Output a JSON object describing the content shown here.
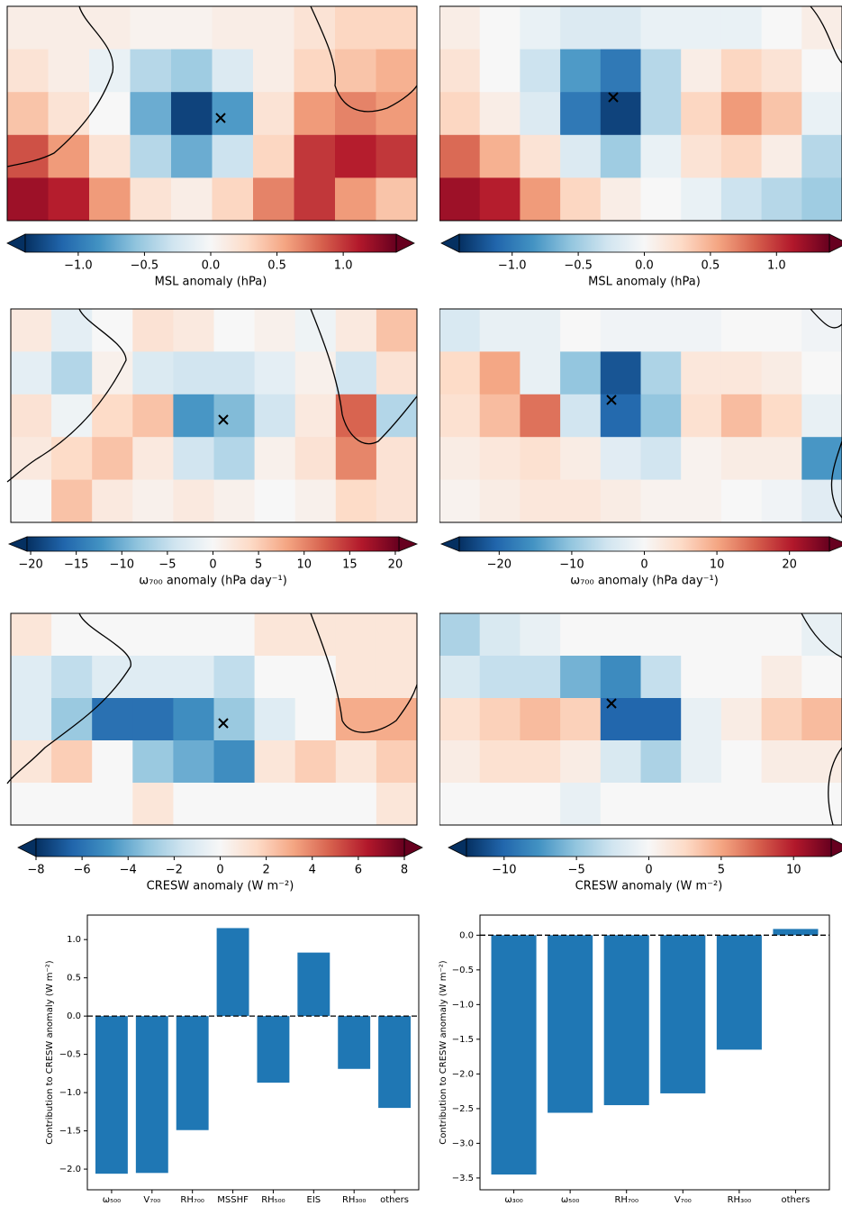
{
  "chart_data": [
    {
      "type": "heatmap",
      "colormap": "RdBu_r",
      "colorbar_label": "MSL anomaly (hPa)",
      "vlim": [
        -1.4,
        1.4
      ],
      "ticks": [
        {
          "value": -1.0,
          "label": "−1.0"
        },
        {
          "value": -0.5,
          "label": "−0.5"
        },
        {
          "value": 0.0,
          "label": "0.0"
        },
        {
          "value": 0.5,
          "label": "0.5"
        },
        {
          "value": 1.0,
          "label": "1.0"
        }
      ],
      "values": [
        [
          0.1,
          0.1,
          0.1,
          0.05,
          0.05,
          0.1,
          0.1,
          0.2,
          0.3,
          0.3
        ],
        [
          0.2,
          0.1,
          -0.1,
          -0.4,
          -0.5,
          -0.2,
          0.1,
          0.3,
          0.4,
          0.5
        ],
        [
          0.4,
          0.2,
          0,
          -0.7,
          -1.3,
          -0.8,
          0.2,
          0.6,
          0.7,
          0.6
        ],
        [
          0.9,
          0.6,
          0.2,
          -0.4,
          -0.7,
          -0.3,
          0.3,
          1.0,
          1.1,
          1.0
        ],
        [
          1.2,
          1.1,
          0.6,
          0.2,
          0.1,
          0.3,
          0.7,
          1.0,
          0.6,
          0.4
        ]
      ]
    },
    {
      "type": "heatmap",
      "colormap": "RdBu_r",
      "colorbar_label": "MSL anomaly (hPa)",
      "vlim": [
        -1.4,
        1.4
      ],
      "ticks": [
        {
          "value": -1.0,
          "label": "−1.0"
        },
        {
          "value": -0.5,
          "label": "−0.5"
        },
        {
          "value": 0.0,
          "label": "0.0"
        },
        {
          "value": 0.5,
          "label": "0.5"
        },
        {
          "value": 1.0,
          "label": "1.0"
        }
      ],
      "values": [
        [
          0.1,
          0,
          -0.1,
          -0.2,
          -0.2,
          -0.1,
          -0.1,
          -0.1,
          0,
          0.1
        ],
        [
          0.2,
          0,
          -0.3,
          -0.8,
          -1.0,
          -0.4,
          0.1,
          0.3,
          0.2,
          0
        ],
        [
          0.3,
          0.1,
          -0.2,
          -1.0,
          -1.3,
          -0.4,
          0.3,
          0.6,
          0.4,
          -0.1
        ],
        [
          0.8,
          0.5,
          0.2,
          -0.2,
          -0.5,
          -0.1,
          0.2,
          0.3,
          0.1,
          -0.4
        ],
        [
          1.2,
          1.1,
          0.6,
          0.3,
          0.1,
          0,
          -0.1,
          -0.3,
          -0.4,
          -0.5
        ]
      ]
    },
    {
      "type": "heatmap",
      "colormap": "RdBu_r",
      "colorbar_label": "ω₇₀₀ anomaly (hPa day⁻¹)",
      "vlim": [
        -20.4,
        20.4
      ],
      "ticks": [
        {
          "value": -20,
          "label": "−20"
        },
        {
          "value": -15,
          "label": "−15"
        },
        {
          "value": -10,
          "label": "−10"
        },
        {
          "value": -5,
          "label": "−5"
        },
        0,
        5,
        10,
        15,
        20
      ],
      "values": [
        [
          2,
          -2,
          0,
          3,
          2,
          0,
          1,
          -1,
          2,
          6
        ],
        [
          -2,
          -6,
          1,
          -3,
          -4,
          -4,
          -2,
          1,
          -4,
          3
        ],
        [
          3,
          -1,
          4,
          6,
          -12,
          -9,
          -4,
          2,
          12,
          -6
        ],
        [
          2,
          4,
          6,
          2,
          -4,
          -6,
          1,
          3,
          10,
          3
        ],
        [
          0,
          6,
          2,
          1,
          2,
          1,
          0,
          1,
          4,
          3
        ]
      ]
    },
    {
      "type": "heatmap",
      "colormap": "RdBu_r",
      "colorbar_label": "ω₇₀₀ anomaly (hPa day⁻¹)",
      "vlim": [
        -25.5,
        25.5
      ],
      "ticks": [
        {
          "value": -20,
          "label": "−20"
        },
        {
          "value": -10,
          "label": "−10"
        },
        0,
        10,
        20
      ],
      "values": [
        [
          -4,
          -2,
          -2,
          0,
          -1,
          -1,
          -1,
          0,
          0,
          -1
        ],
        [
          5,
          10,
          -2,
          -10,
          -22,
          -8,
          3,
          3,
          2,
          0
        ],
        [
          4,
          8,
          14,
          -5,
          -20,
          -10,
          4,
          8,
          5,
          -2
        ],
        [
          2,
          3,
          4,
          2,
          -3,
          -5,
          1,
          2,
          2,
          -15
        ],
        [
          1,
          2,
          3,
          3,
          2,
          1,
          1,
          0,
          -1,
          -3
        ]
      ]
    },
    {
      "type": "heatmap",
      "colormap": "RdBu_r",
      "colorbar_label": "CRESW anomaly (W m⁻²)",
      "vlim": [
        -8,
        8
      ],
      "ticks": [
        {
          "value": -8,
          "label": "−8"
        },
        {
          "value": -6,
          "label": "−6"
        },
        {
          "value": -4,
          "label": "−4"
        },
        {
          "value": -2,
          "label": "−2"
        },
        0,
        2,
        4,
        6,
        8
      ],
      "values": [
        [
          1,
          0,
          0,
          0,
          0,
          0,
          1,
          1,
          1,
          1
        ],
        [
          -1,
          -2,
          -1,
          -1,
          -1,
          -2,
          0,
          0,
          1,
          1
        ],
        [
          -1,
          -3,
          -6,
          -6,
          -5,
          -3,
          -1,
          0,
          3,
          3
        ],
        [
          1,
          2,
          0,
          -3,
          -4,
          -5,
          1,
          2,
          1,
          2
        ],
        [
          0,
          0,
          0,
          1,
          0,
          0,
          0,
          0,
          0,
          1
        ]
      ]
    },
    {
      "type": "heatmap",
      "colormap": "RdBu_r",
      "colorbar_label": "CRESW anomaly (W m⁻²)",
      "vlim": [
        -12.6,
        12.6
      ],
      "ticks": [
        {
          "value": -10,
          "label": "−10"
        },
        {
          "value": -5,
          "label": "−5"
        },
        0,
        5,
        10
      ],
      "values": [
        [
          -4,
          -2,
          -1,
          0,
          0,
          0,
          0,
          0,
          0,
          -1
        ],
        [
          -2,
          -3,
          -3,
          -6,
          -8,
          -3,
          0,
          0,
          1,
          0
        ],
        [
          2,
          3,
          4,
          3,
          -10,
          -10,
          -1,
          1,
          3,
          4
        ],
        [
          1,
          2,
          2,
          1,
          -2,
          -4,
          -1,
          0,
          1,
          1
        ],
        [
          0,
          0,
          0,
          -1,
          0,
          0,
          0,
          0,
          0,
          0
        ]
      ]
    },
    {
      "type": "bar",
      "color": "#1f77b4",
      "ylabel": "Contribution to CRESW anomaly (W m⁻²)",
      "categories": [
        "ω₅₀₀",
        "V₇₀₀",
        "RH₇₀₀",
        "MSSHF",
        "RH₅₀₀",
        "EIS",
        "RH₃₀₀",
        "others"
      ],
      "values": [
        -2.06,
        -2.05,
        -1.49,
        1.15,
        -0.87,
        0.83,
        -0.69,
        -1.2
      ],
      "ylim": [
        -2.27,
        1.32
      ],
      "yticks": [
        {
          "value": -2.0,
          "label": "−2.0"
        },
        {
          "value": -1.5,
          "label": "−1.5"
        },
        {
          "value": -1.0,
          "label": "−1.0"
        },
        {
          "value": -0.5,
          "label": "−0.5"
        },
        {
          "value": 0.0,
          "label": "0.0"
        },
        0.5,
        {
          "value": 1.0,
          "label": "1.0"
        }
      ]
    },
    {
      "type": "bar",
      "color": "#1f77b4",
      "ylabel": "Contribution to CRESW anomaly (W m⁻²)",
      "categories": [
        "ω₃₀₀",
        "ω₅₀₀",
        "RH₇₀₀",
        "V₇₀₀",
        "RH₃₀₀",
        "others"
      ],
      "values": [
        -3.45,
        -2.56,
        -2.45,
        -2.28,
        -1.65,
        0.09
      ],
      "ylim": [
        -3.67,
        0.29
      ],
      "yticks": [
        {
          "value": -3.5,
          "label": "−3.5"
        },
        {
          "value": -3.0,
          "label": "−3.0"
        },
        {
          "value": -2.5,
          "label": "−2.5"
        },
        {
          "value": -2.0,
          "label": "−2.0"
        },
        {
          "value": -1.5,
          "label": "−1.5"
        },
        {
          "value": -1.0,
          "label": "−1.0"
        },
        {
          "value": -0.5,
          "label": "−0.5"
        },
        {
          "value": 0.0,
          "label": "0.0"
        }
      ]
    }
  ]
}
